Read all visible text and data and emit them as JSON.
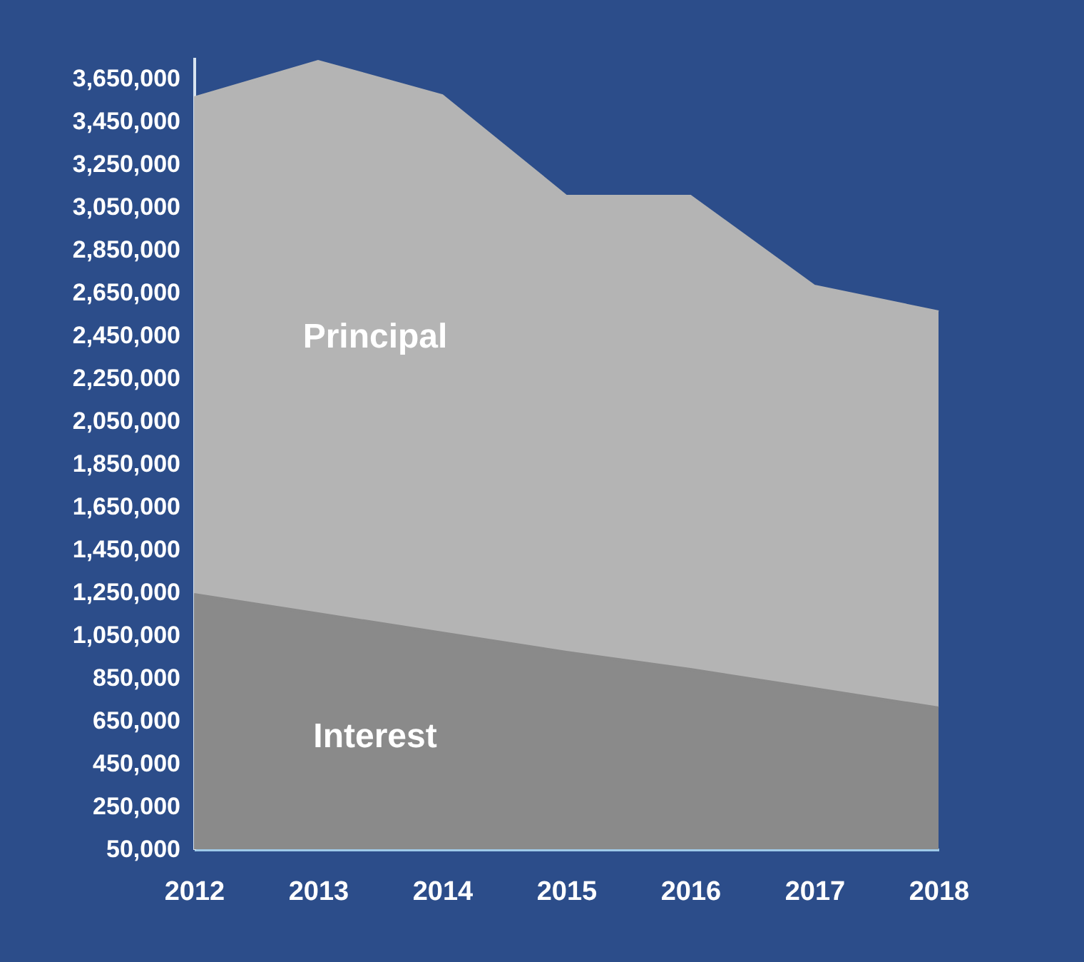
{
  "chart_data": {
    "type": "area",
    "stacked": true,
    "categories": [
      "2012",
      "2013",
      "2014",
      "2015",
      "2016",
      "2017",
      "2018"
    ],
    "series": [
      {
        "name": "Interest",
        "color": "#8a8a8a",
        "values": [
          1240000,
          1150000,
          1060000,
          970000,
          890000,
          800000,
          710000
        ]
      },
      {
        "name": "Principal",
        "color": "#b4b4b4",
        "values": [
          2320000,
          2580000,
          2510000,
          2130000,
          2210000,
          1880000,
          1850000
        ]
      }
    ],
    "ylim": [
      50000,
      3750000
    ],
    "yticks": [
      {
        "value": 50000,
        "label": "50,000"
      },
      {
        "value": 250000,
        "label": "250,000"
      },
      {
        "value": 450000,
        "label": "450,000"
      },
      {
        "value": 650000,
        "label": "650,000"
      },
      {
        "value": 850000,
        "label": "850,000"
      },
      {
        "value": 1050000,
        "label": "1,050,000"
      },
      {
        "value": 1250000,
        "label": "1,250,000"
      },
      {
        "value": 1450000,
        "label": "1,450,000"
      },
      {
        "value": 1650000,
        "label": "1,650,000"
      },
      {
        "value": 1850000,
        "label": "1,850,000"
      },
      {
        "value": 2050000,
        "label": "2,050,000"
      },
      {
        "value": 2250000,
        "label": "2,250,000"
      },
      {
        "value": 2450000,
        "label": "2,450,000"
      },
      {
        "value": 2650000,
        "label": "2,650,000"
      },
      {
        "value": 2850000,
        "label": "2,850,000"
      },
      {
        "value": 3050000,
        "label": "3,050,000"
      },
      {
        "value": 3250000,
        "label": "3,250,000"
      },
      {
        "value": 3450000,
        "label": "3,450,000"
      },
      {
        "value": 3650000,
        "label": "3,650,000"
      }
    ],
    "grid": false,
    "legend": false
  }
}
